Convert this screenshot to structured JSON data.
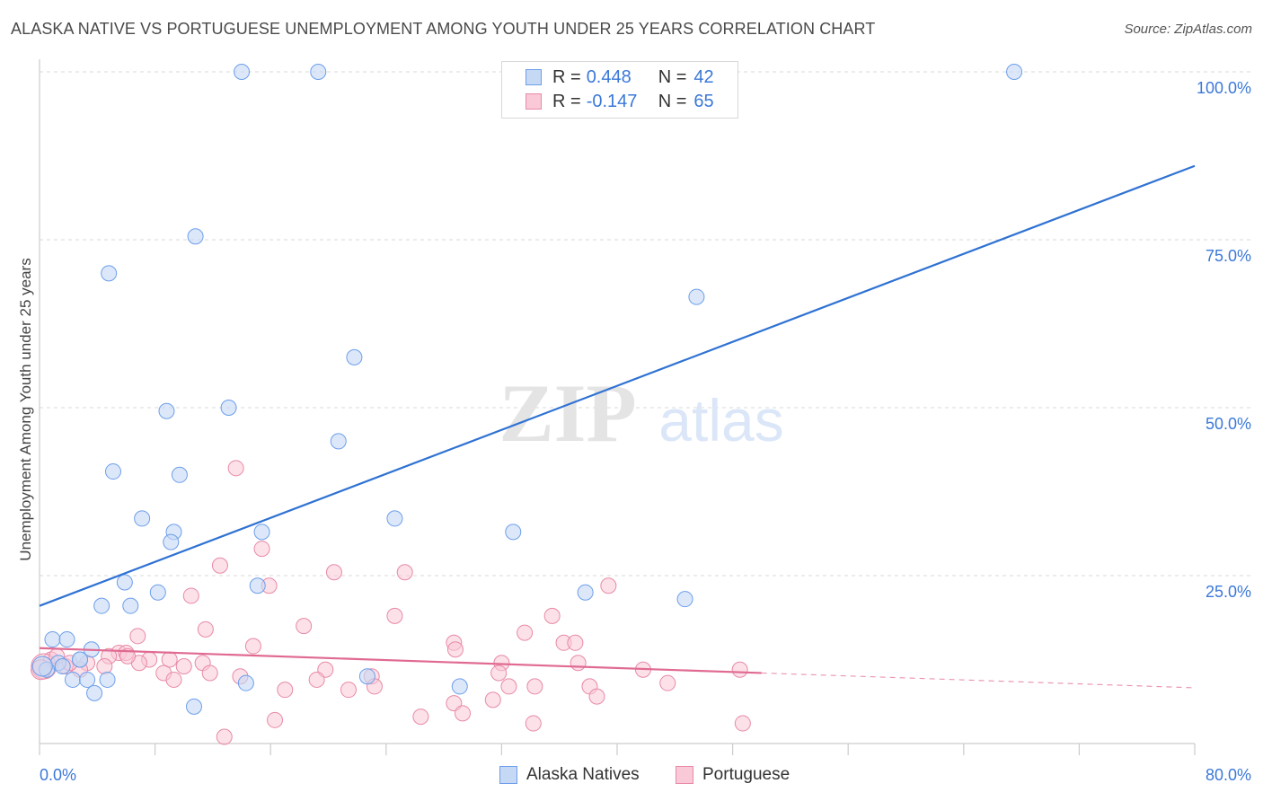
{
  "header": {
    "title": "ALASKA NATIVE VS PORTUGUESE UNEMPLOYMENT AMONG YOUTH UNDER 25 YEARS CORRELATION CHART",
    "source": "Source: ZipAtlas.com"
  },
  "watermark": {
    "zip": "ZIP",
    "atlas": "atlas"
  },
  "legend": {
    "r_label": "R =",
    "n_label": "N =",
    "series": [
      {
        "name": "Alaska Natives",
        "r": "0.448",
        "n": "42",
        "fill": "#c5d9f5",
        "stroke": "#6d9eeb"
      },
      {
        "name": "Portuguese",
        "r": "-0.147",
        "n": "65",
        "fill": "#f9c9d7",
        "stroke": "#e88aa6"
      }
    ]
  },
  "colors": {
    "blue_line": "#2f72d3",
    "pink_line": "#e06a92",
    "axis_text_blue": "#3b78d8",
    "grid": "#d9d9d9"
  },
  "chart_data": {
    "type": "scatter",
    "title": "ALASKA NATIVE VS PORTUGUESE UNEMPLOYMENT AMONG YOUTH UNDER 25 YEARS CORRELATION CHART",
    "xlabel": "",
    "ylabel": "Unemployment Among Youth under 25 years",
    "xlim": [
      0,
      80
    ],
    "ylim": [
      0,
      100
    ],
    "x_tick_labels": [
      "0.0%",
      "80.0%"
    ],
    "y_ticks": [
      25,
      50,
      75,
      100
    ],
    "y_tick_labels": [
      "25.0%",
      "50.0%",
      "75.0%",
      "100.0%"
    ],
    "series": [
      {
        "name": "Alaska Natives",
        "points": [
          [
            14,
            100
          ],
          [
            19.3,
            100
          ],
          [
            67.5,
            100
          ],
          [
            10.8,
            75.5
          ],
          [
            4.8,
            70
          ],
          [
            45.5,
            66.5
          ],
          [
            21.8,
            57.5
          ],
          [
            8.8,
            49.5
          ],
          [
            13.1,
            50
          ],
          [
            20.7,
            45
          ],
          [
            5.1,
            40.5
          ],
          [
            9.7,
            40
          ],
          [
            7.1,
            33.5
          ],
          [
            24.6,
            33.5
          ],
          [
            9.3,
            31.5
          ],
          [
            15.4,
            31.5
          ],
          [
            32.8,
            31.5
          ],
          [
            9.1,
            30
          ],
          [
            5.9,
            24
          ],
          [
            15.1,
            23.5
          ],
          [
            8.2,
            22.5
          ],
          [
            37.8,
            22.5
          ],
          [
            44.7,
            21.5
          ],
          [
            4.3,
            20.5
          ],
          [
            6.3,
            20.5
          ],
          [
            0.9,
            15.5
          ],
          [
            1.9,
            15.5
          ],
          [
            3.6,
            14
          ],
          [
            2.8,
            12.5
          ],
          [
            2.8,
            12.5
          ],
          [
            1.3,
            12
          ],
          [
            0.5,
            11
          ],
          [
            1.6,
            11.5
          ],
          [
            2.3,
            9.5
          ],
          [
            3.3,
            9.5
          ],
          [
            4.7,
            9.5
          ],
          [
            14.3,
            9
          ],
          [
            22.7,
            10
          ],
          [
            29.1,
            8.5
          ],
          [
            3.8,
            7.5
          ],
          [
            10.7,
            5.5
          ],
          [
            0.2,
            11.5
          ]
        ],
        "trend": {
          "x": [
            0,
            80
          ],
          "y": [
            20.5,
            86
          ]
        }
      },
      {
        "name": "Portuguese",
        "points": [
          [
            13.6,
            41
          ],
          [
            15.4,
            29
          ],
          [
            12.5,
            26.5
          ],
          [
            20.4,
            25.5
          ],
          [
            25.3,
            25.5
          ],
          [
            39.4,
            23.5
          ],
          [
            15.9,
            23.5
          ],
          [
            10.5,
            22
          ],
          [
            24.6,
            19
          ],
          [
            35.5,
            19
          ],
          [
            18.3,
            17.5
          ],
          [
            11.5,
            17
          ],
          [
            6.8,
            16
          ],
          [
            33.6,
            16.5
          ],
          [
            14.8,
            14.5
          ],
          [
            28.7,
            15
          ],
          [
            36.3,
            15
          ],
          [
            28.8,
            14
          ],
          [
            37.1,
            15
          ],
          [
            5.5,
            13.5
          ],
          [
            6.0,
            13.5
          ],
          [
            4.8,
            13
          ],
          [
            7.6,
            12.5
          ],
          [
            9.0,
            12.5
          ],
          [
            11.3,
            12
          ],
          [
            6.9,
            12
          ],
          [
            3.3,
            12
          ],
          [
            4.5,
            11.5
          ],
          [
            10.0,
            11.5
          ],
          [
            19.8,
            11
          ],
          [
            32.0,
            12
          ],
          [
            37.3,
            12
          ],
          [
            41.8,
            11
          ],
          [
            48.5,
            11
          ],
          [
            0.8,
            12.5
          ],
          [
            1.8,
            11.5
          ],
          [
            2.8,
            11
          ],
          [
            8.6,
            10.5
          ],
          [
            11.8,
            10.5
          ],
          [
            13.9,
            10
          ],
          [
            23.0,
            10
          ],
          [
            19.2,
            9.5
          ],
          [
            9.3,
            9.5
          ],
          [
            31.8,
            10.5
          ],
          [
            23.2,
            8.5
          ],
          [
            32.5,
            8.5
          ],
          [
            34.3,
            8.5
          ],
          [
            38.1,
            8.5
          ],
          [
            43.5,
            9
          ],
          [
            17.0,
            8
          ],
          [
            21.4,
            8
          ],
          [
            38.6,
            7
          ],
          [
            31.4,
            6.5
          ],
          [
            28.7,
            6
          ],
          [
            29.3,
            4.5
          ],
          [
            16.3,
            3.5
          ],
          [
            26.4,
            4
          ],
          [
            34.2,
            3
          ],
          [
            48.7,
            3
          ],
          [
            12.8,
            1
          ],
          [
            0.3,
            11.5
          ],
          [
            0.1,
            11
          ],
          [
            1.2,
            13
          ],
          [
            2.1,
            12
          ],
          [
            6.1,
            13
          ]
        ],
        "trend": {
          "x": [
            0,
            50
          ],
          "y": [
            14.2,
            10.5
          ]
        },
        "trend_dashed": {
          "x": [
            50,
            80
          ],
          "y": [
            10.5,
            8.3
          ]
        }
      }
    ]
  }
}
